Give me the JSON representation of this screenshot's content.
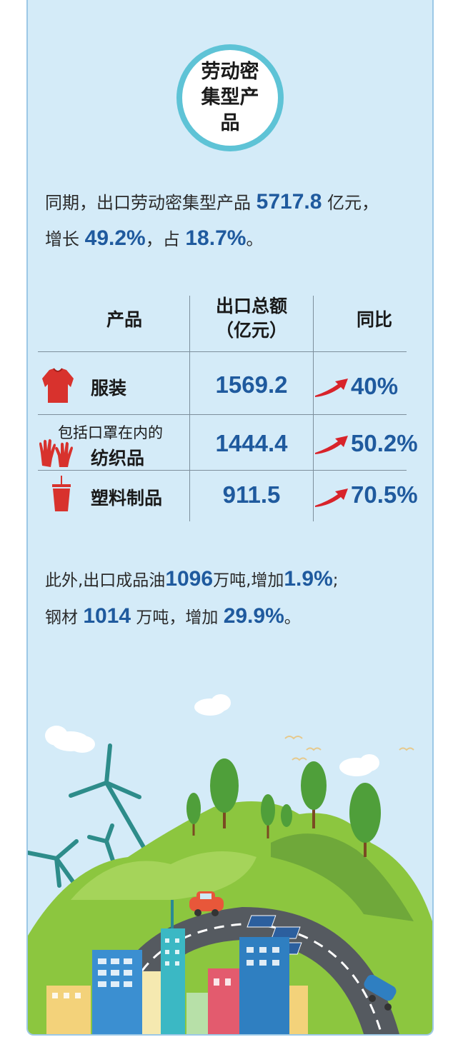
{
  "badge": {
    "text": "劳动密集型产品"
  },
  "intro": {
    "t1": "同期，出口劳动密集型产品",
    "v1": "5717.8",
    "t2": "亿元，",
    "t3": "增长",
    "v2": "49.2%",
    "t4": "，占",
    "v3": "18.7%",
    "t5": "。"
  },
  "table": {
    "headers": {
      "product": "产品",
      "amount_line1": "出口总额",
      "amount_line2": "（亿元）",
      "yoy": "同比"
    },
    "rows": [
      {
        "name": "服装",
        "note": "",
        "amount": "1569.2",
        "yoy": "40%",
        "icon": "shirt-icon"
      },
      {
        "name": "纺织品",
        "note": "包括口罩在内的",
        "amount": "1444.4",
        "yoy": "50.2%",
        "icon": "gloves-icon"
      },
      {
        "name": "塑料制品",
        "note": "",
        "amount": "911.5",
        "yoy": "70.5%",
        "icon": "cup-icon"
      }
    ]
  },
  "outro": {
    "t1": "此外,出口成品油",
    "v1": "1096",
    "t2": "万吨,增加",
    "v2": "1.9%",
    "t3": ";",
    "t4": "钢材",
    "v3": "1014",
    "t5": "万吨，增加",
    "v4": "29.9%",
    "t6": "。"
  },
  "colors": {
    "accent": "#1f5a9e",
    "background": "#d4ebf8",
    "badge_ring": "#5ec3d6",
    "arrow": "#d8232a",
    "icon_red": "#d8322d"
  }
}
